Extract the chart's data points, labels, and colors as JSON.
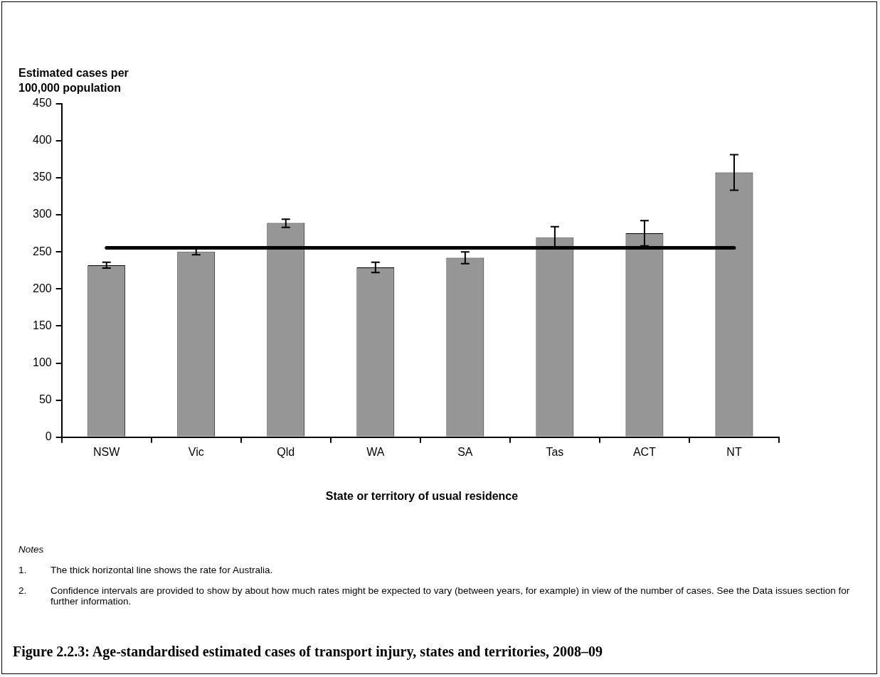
{
  "chart_data": {
    "type": "bar",
    "title": "Figure 2.2.3: Age-standardised estimated cases of transport injury, states and territories, 2008–09",
    "ylabel": "Estimated cases per 100,000 population",
    "xlabel": "State or territory of usual residence",
    "categories": [
      "NSW",
      "Vic",
      "Qld",
      "WA",
      "SA",
      "Tas",
      "ACT",
      "NT"
    ],
    "values": [
      232,
      250,
      289,
      229,
      242,
      269,
      275,
      357
    ],
    "errors": [
      [
        228,
        236
      ],
      [
        246,
        255
      ],
      [
        283,
        294
      ],
      [
        222,
        236
      ],
      [
        234,
        250
      ],
      [
        255,
        284
      ],
      [
        258,
        292
      ],
      [
        333,
        381
      ]
    ],
    "color": "#969696",
    "ylim": [
      0,
      450
    ],
    "yticks": [
      0,
      50,
      100,
      150,
      200,
      250,
      300,
      350,
      400,
      450
    ],
    "ref_lines": [
      {
        "axis": "y",
        "value": 255.5,
        "color": "#000000"
      }
    ],
    "grid": false,
    "legend": false,
    "annotations": [
      "Notes",
      "1.\tThe thick horizontal line shows the rate for Australia.",
      "2.\tConfidence intervals are provided to show by about how much rates might be expected to vary (between years, for example) in view of the number of cases. See the Data issues section for further information."
    ]
  }
}
